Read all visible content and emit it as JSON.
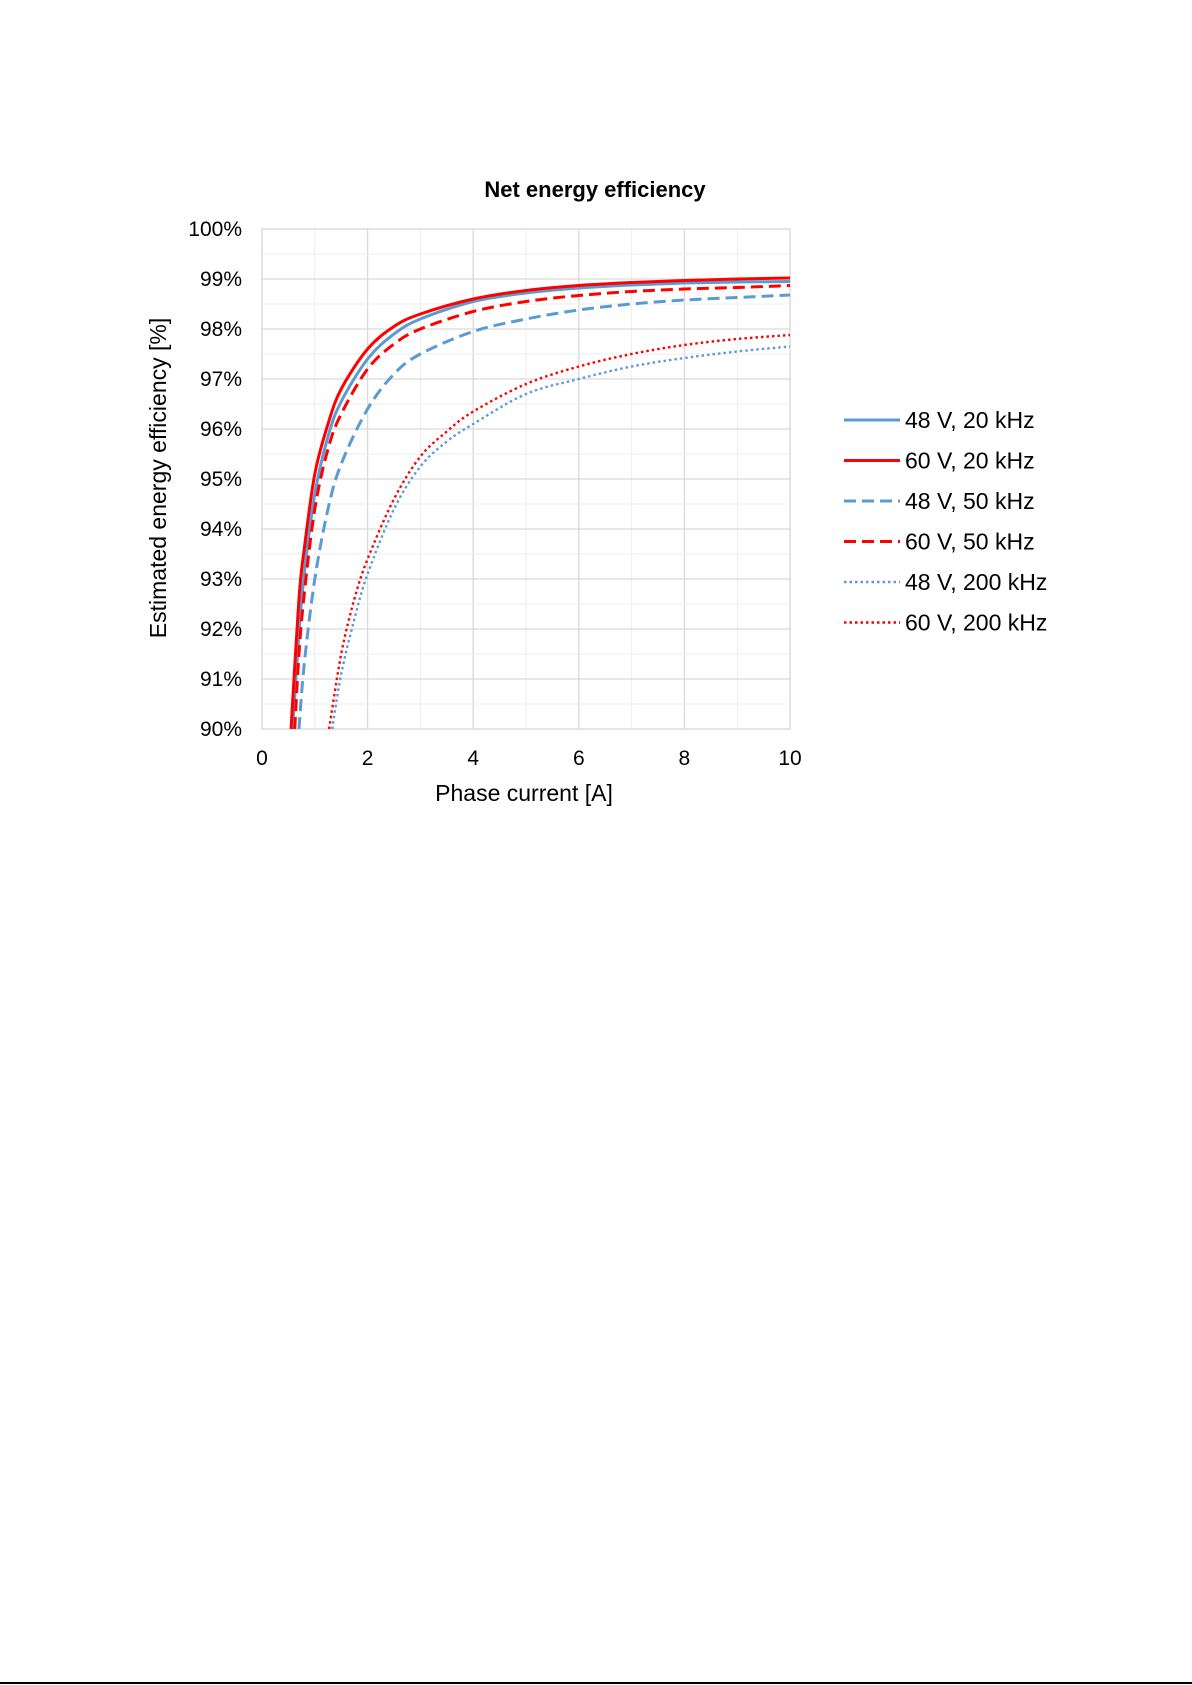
{
  "chart_data": {
    "type": "line",
    "title": "Net energy efficiency",
    "xlabel": "Phase current [A]",
    "ylabel": "Estimated energy efficiency [%]",
    "xlim": [
      0,
      10
    ],
    "ylim": [
      90,
      100
    ],
    "x_ticks": [
      "0",
      "2",
      "4",
      "6",
      "8",
      "10"
    ],
    "y_ticks": [
      "90%",
      "91%",
      "92%",
      "93%",
      "94%",
      "95%",
      "96%",
      "97%",
      "98%",
      "99%",
      "100%"
    ],
    "grid": true,
    "legend_position": "right",
    "series": [
      {
        "name": "48 V, 20 kHz",
        "color": "#5b9bd5",
        "line_style": "solid",
        "x": [
          0.58,
          0.7,
          0.8,
          1.0,
          1.25,
          1.5,
          2.0,
          2.5,
          3.0,
          4.0,
          5.0,
          6.0,
          7.0,
          8.0,
          9.0,
          10.0
        ],
        "y": [
          90.0,
          91.9,
          93.1,
          94.7,
          95.85,
          96.55,
          97.4,
          97.9,
          98.2,
          98.55,
          98.72,
          98.82,
          98.88,
          98.92,
          98.94,
          98.95
        ]
      },
      {
        "name": "60 V, 20 kHz",
        "color": "#ff0000",
        "line_style": "solid",
        "x": [
          0.55,
          0.7,
          0.8,
          1.0,
          1.25,
          1.5,
          2.0,
          2.5,
          3.0,
          4.0,
          5.0,
          6.0,
          7.0,
          8.0,
          9.0,
          10.0
        ],
        "y": [
          90.0,
          92.6,
          93.6,
          95.1,
          96.1,
          96.8,
          97.6,
          98.05,
          98.3,
          98.6,
          98.77,
          98.87,
          98.93,
          98.97,
          99.0,
          99.02
        ]
      },
      {
        "name": "48 V, 50 kHz",
        "color": "#5b9bd5",
        "line_style": "dashed",
        "x": [
          0.7,
          0.8,
          1.0,
          1.25,
          1.5,
          2.0,
          2.5,
          3.0,
          4.0,
          5.0,
          6.0,
          7.0,
          8.0,
          9.0,
          10.0
        ],
        "y": [
          90.0,
          91.3,
          93.0,
          94.4,
          95.3,
          96.4,
          97.1,
          97.5,
          97.95,
          98.2,
          98.38,
          98.5,
          98.58,
          98.63,
          98.68
        ]
      },
      {
        "name": "60 V, 50 kHz",
        "color": "#ff0000",
        "line_style": "dashed",
        "x": [
          0.62,
          0.7,
          0.8,
          1.0,
          1.25,
          1.5,
          2.0,
          2.5,
          3.0,
          4.0,
          5.0,
          6.0,
          7.0,
          8.0,
          9.0,
          10.0
        ],
        "y": [
          90.0,
          91.5,
          92.7,
          94.4,
          95.6,
          96.3,
          97.2,
          97.7,
          98.0,
          98.35,
          98.55,
          98.67,
          98.75,
          98.8,
          98.83,
          98.87
        ]
      },
      {
        "name": "48 V, 200 kHz",
        "color": "#5b9bd5",
        "line_style": "dotted",
        "x": [
          1.33,
          1.5,
          1.75,
          2.0,
          2.5,
          3.0,
          3.5,
          4.0,
          5.0,
          6.0,
          7.0,
          8.0,
          9.0,
          10.0
        ],
        "y": [
          90.0,
          91.1,
          92.2,
          93.1,
          94.4,
          95.25,
          95.75,
          96.1,
          96.7,
          97.0,
          97.25,
          97.42,
          97.55,
          97.65
        ]
      },
      {
        "name": "60 V, 200 kHz",
        "color": "#ff0000",
        "line_style": "dotted",
        "x": [
          1.27,
          1.5,
          1.75,
          2.0,
          2.5,
          3.0,
          3.5,
          4.0,
          5.0,
          6.0,
          7.0,
          8.0,
          9.0,
          10.0
        ],
        "y": [
          90.0,
          91.5,
          92.6,
          93.4,
          94.6,
          95.45,
          95.95,
          96.35,
          96.9,
          97.25,
          97.5,
          97.68,
          97.8,
          97.88
        ]
      }
    ]
  }
}
